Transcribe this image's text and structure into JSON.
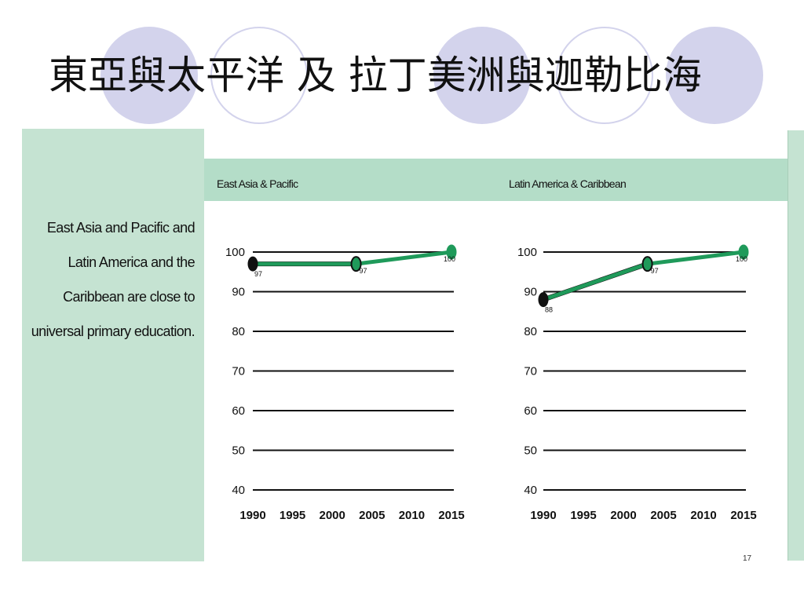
{
  "slide": {
    "title": "東亞與太平洋  及 拉丁美洲與迦勒比海",
    "page_number": "17"
  },
  "sidebar": {
    "lines": [
      "East Asia and Pacific and",
      "Latin America and the",
      "Caribbean are close to",
      "universal primary education."
    ]
  },
  "colors": {
    "accent_circles": "#d3d3ec",
    "sidebar_bg": "#c5e3d2",
    "header_band": "#b4ddc8",
    "actual_series": "#111111",
    "target_series": "#1f9a5a"
  },
  "chart_data": [
    {
      "type": "line",
      "title": "East Asia & Pacific",
      "ylim": [
        40,
        100
      ],
      "yticks": [
        40,
        50,
        60,
        70,
        80,
        90,
        100
      ],
      "xticks": [
        1990,
        1995,
        2000,
        2005,
        2010,
        2015
      ],
      "xlim": [
        1990,
        2015
      ],
      "grid": true,
      "series": [
        {
          "values": [
            {
              "x": 1990,
              "y": 97
            },
            {
              "x": 2003,
              "y": 97
            }
          ],
          "color": "#111111"
        },
        {
          "values": [
            {
              "x": 1990,
              "y": 97
            },
            {
              "x": 2003,
              "y": 97
            },
            {
              "x": 2015,
              "y": 100
            }
          ],
          "color": "#1f9a5a"
        }
      ],
      "data_labels": [
        {
          "x": 1990,
          "y": 97,
          "text": "97"
        },
        {
          "x": 2003,
          "y": 97,
          "text": "97"
        },
        {
          "x": 2015,
          "y": 100,
          "text": "100"
        }
      ]
    },
    {
      "type": "line",
      "title": "Latin America & Caribbean",
      "ylim": [
        40,
        100
      ],
      "yticks": [
        40,
        50,
        60,
        70,
        80,
        90,
        100
      ],
      "xticks": [
        1990,
        1995,
        2000,
        2005,
        2010,
        2015
      ],
      "xlim": [
        1990,
        2015
      ],
      "grid": true,
      "series": [
        {
          "values": [
            {
              "x": 1990,
              "y": 88
            },
            {
              "x": 2003,
              "y": 97
            }
          ],
          "color": "#111111"
        },
        {
          "values": [
            {
              "x": 1990,
              "y": 88
            },
            {
              "x": 2003,
              "y": 97
            },
            {
              "x": 2015,
              "y": 100
            }
          ],
          "color": "#1f9a5a"
        }
      ],
      "data_labels": [
        {
          "x": 1990,
          "y": 88,
          "text": "88"
        },
        {
          "x": 2003,
          "y": 97,
          "text": "97"
        },
        {
          "x": 2015,
          "y": 100,
          "text": "100"
        }
      ]
    }
  ]
}
